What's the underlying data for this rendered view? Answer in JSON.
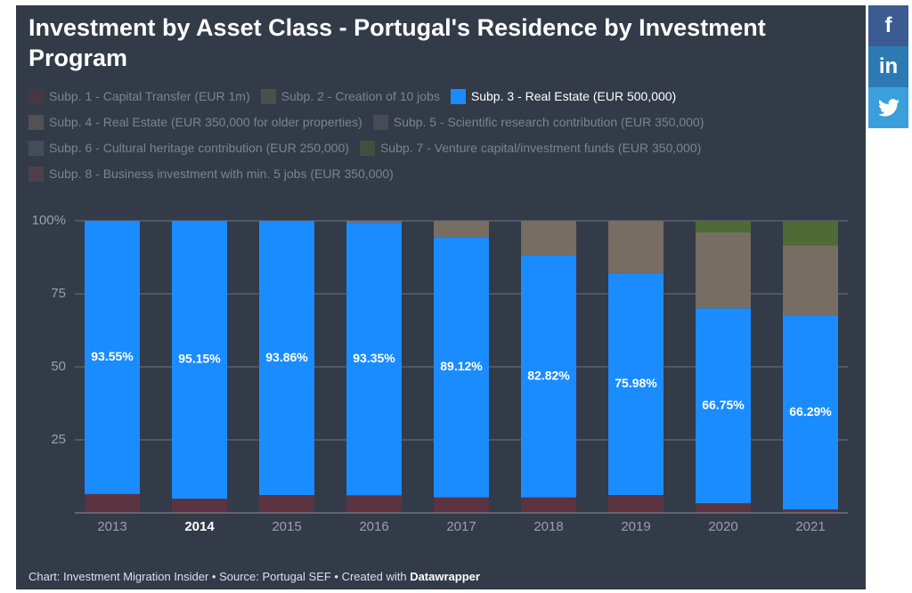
{
  "chart_data": {
    "type": "stacked_bar",
    "title": "Investment by Asset Class - Portugal's Residence by Investment Program",
    "categories": [
      "2013",
      "2014",
      "2015",
      "2016",
      "2017",
      "2018",
      "2019",
      "2020",
      "2021"
    ],
    "series": [
      {
        "name": "Subp. 1 - Capital Transfer (EUR 1m)",
        "color": "#5c3340",
        "values": [
          6.45,
          4.85,
          6.1,
          6.0,
          5.3,
          5.3,
          6.1,
          3.3,
          1.2
        ]
      },
      {
        "name": "Subp. 2 - Creation of 10 jobs",
        "color": "#6b6b55",
        "values": [
          0,
          0,
          0,
          0,
          0,
          0,
          0,
          0,
          0
        ]
      },
      {
        "name": "Subp. 3 - Real Estate (EUR 500,000)",
        "color": "#1a8cff",
        "values": [
          93.55,
          95.15,
          93.86,
          93.35,
          89.12,
          82.82,
          75.98,
          66.75,
          66.29
        ],
        "value_labels": [
          "93.55%",
          "95.15%",
          "93.86%",
          "93.35%",
          "89.12%",
          "82.82%",
          "75.98%",
          "66.75%",
          "66.29%"
        ]
      },
      {
        "name": "Subp. 4 - Real Estate (EUR 350,000 for older properties)",
        "color": "#776d62",
        "values": [
          0,
          0,
          0,
          0.6,
          5.5,
          11.9,
          17.9,
          26.0,
          24.1
        ]
      },
      {
        "name": "Subp. 5 - Scientific research contribution (EUR 350,000)",
        "color": "#5b626b",
        "values": [
          0,
          0,
          0,
          0,
          0,
          0,
          0,
          0,
          0
        ]
      },
      {
        "name": "Subp. 6 - Cultural heritage contribution (EUR 250,000)",
        "color": "#56646f",
        "values": [
          0,
          0,
          0,
          0,
          0,
          0,
          0,
          0,
          0
        ]
      },
      {
        "name": "Subp. 7 - Venture capital/investment funds (EUR 350,000)",
        "color": "#4e6a35",
        "values": [
          0,
          0,
          0,
          0,
          0,
          0,
          0,
          3.95,
          8.4
        ]
      },
      {
        "name": "Subp. 8 - Business investment with min. 5 jobs (EUR 350,000)",
        "color": "#6a4752",
        "values": [
          0,
          0,
          0,
          0,
          0,
          0,
          0,
          0,
          0
        ]
      }
    ],
    "ylim": [
      0,
      100
    ],
    "yticks": [
      25,
      50,
      75,
      {
        "value": 100,
        "label": "100%"
      }
    ],
    "grid": true
  },
  "footer": {
    "text": "Chart: Investment Migration Insider • Source: Portugal SEF • Created with ",
    "brand": "Datawrapper"
  },
  "social": {
    "facebook": "f",
    "linkedin": "in"
  }
}
